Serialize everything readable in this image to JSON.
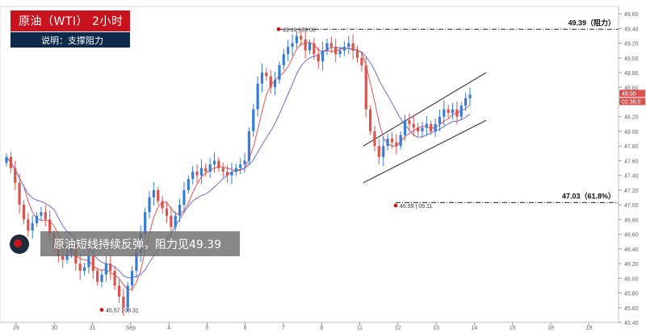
{
  "title": "原油（WTI） 2小时",
  "subtitle": "说明：支撑阻力",
  "banner": "原油短线持续反弹，阻力见49.39",
  "colors": {
    "up": "#3a7bd5",
    "down": "#d9534f",
    "ma_fast": "#e05555",
    "ma_slow": "#6b6bd6",
    "title_bg": "#c8131f",
    "subtitle_bg": "#0d2a4a"
  },
  "chart_data": {
    "type": "candlestick",
    "ylim": [
      45.4,
      49.7
    ],
    "y_ticks": [
      "49.60",
      "49.40",
      "49.20",
      "49.00",
      "48.80",
      "48.60",
      "48.40",
      "48.20",
      "48.00",
      "47.80",
      "47.60",
      "47.40",
      "47.20",
      "47.00",
      "46.80",
      "46.60",
      "46.40",
      "46.20",
      "46.00",
      "45.80",
      "45.60",
      "45.40"
    ],
    "x_ticks": [
      "29",
      "30",
      "31",
      "Sep",
      "4",
      "5",
      "6",
      "7",
      "8",
      "11",
      "12",
      "13",
      "14",
      "15",
      "18",
      "19"
    ],
    "price_tags": [
      "48.50",
      "01:38:5"
    ],
    "levels": [
      {
        "label": "49.39（阻力）",
        "value": 49.39
      },
      {
        "label": "47.03（61.8%）",
        "value": 47.03
      }
    ],
    "annotations": [
      {
        "text": "49.39 | 09.06",
        "value": 49.39
      },
      {
        "text": "46.99 | 09.11",
        "value": 46.99
      },
      {
        "text": "45.57 | 08.31",
        "value": 45.57
      }
    ],
    "channel": {
      "upper": [
        [
          47.8,
          48.8
        ]
      ],
      "lower": [
        [
          47.3,
          48.15
        ]
      ]
    },
    "path": [
      47.65,
      47.5,
      47.3,
      47.0,
      46.8,
      46.65,
      46.75,
      46.85,
      46.9,
      46.8,
      46.6,
      46.4,
      46.3,
      46.25,
      46.35,
      46.45,
      46.2,
      46.1,
      46.15,
      46.3,
      46.1,
      45.95,
      46.05,
      46.2,
      46.1,
      45.9,
      45.75,
      45.6,
      45.9,
      46.1,
      46.35,
      46.6,
      46.9,
      47.1,
      47.2,
      47.05,
      46.95,
      46.85,
      46.7,
      46.85,
      47.0,
      47.2,
      47.35,
      47.45,
      47.4,
      47.5,
      47.45,
      47.55,
      47.6,
      47.5,
      47.45,
      47.4,
      47.45,
      47.5,
      47.55,
      47.6,
      48.0,
      48.3,
      48.65,
      48.8,
      48.75,
      48.6,
      48.7,
      48.9,
      49.05,
      49.15,
      49.2,
      49.3,
      49.25,
      49.1,
      49.2,
      49.05,
      48.95,
      49.1,
      49.2,
      49.15,
      49.05,
      49.1,
      49.15,
      49.2,
      49.1,
      49.0,
      48.9,
      48.3,
      48.0,
      47.8,
      47.65,
      47.8,
      47.9,
      47.85,
      47.8,
      47.95,
      48.15,
      48.1,
      48.05,
      48.0,
      48.05,
      48.1,
      48.0,
      48.1,
      48.2,
      48.3,
      48.25,
      48.3,
      48.2,
      48.35,
      48.45,
      48.5
    ]
  }
}
